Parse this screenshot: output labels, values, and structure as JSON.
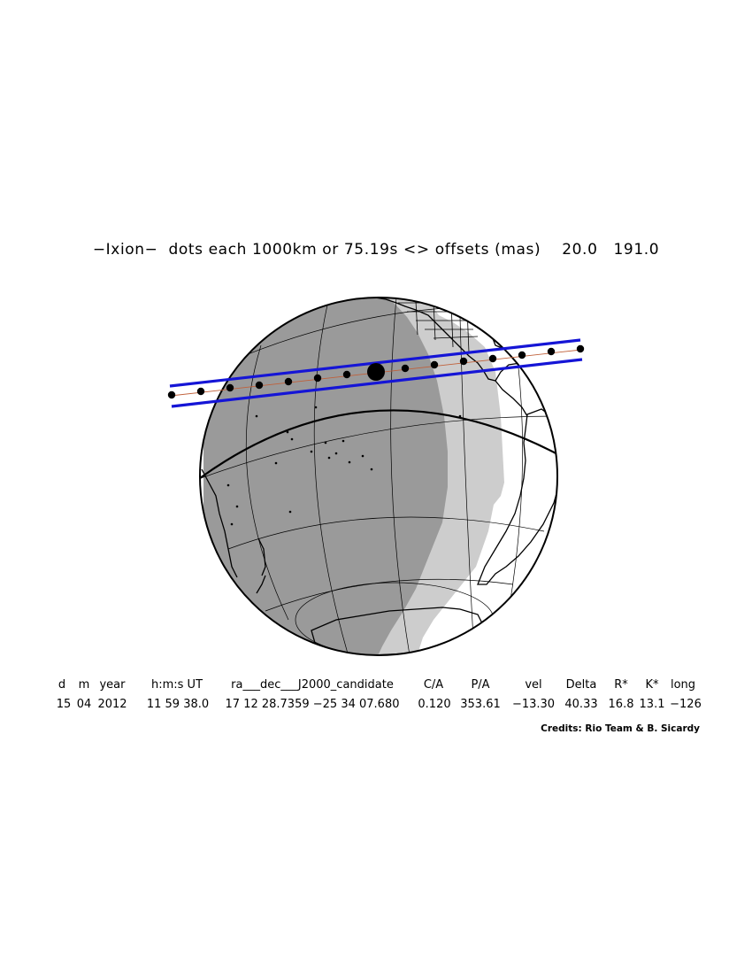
{
  "title": "−Ixion−  dots each 1000km or 75.19s <> offsets (mas)    20.0   191.0",
  "colors": {
    "background": "#ffffff",
    "night_side": "#9a9a9a",
    "twilight": "#cdcdcd",
    "day_side": "#ffffff",
    "shadow_limits": "#1515d6",
    "centerline": "#c0603a",
    "graticule": "#000000",
    "dots": "#000000"
  },
  "diagram": {
    "object": "Ixion",
    "dot_count": 14,
    "closest_approach_dot_index": 7
  },
  "table": {
    "headers": [
      "d",
      "m",
      "year",
      "h:m:s UT",
      "ra___dec___J2000_candidate",
      "C/A",
      "P/A",
      "vel",
      "Delta",
      "R*",
      "K*",
      "long"
    ],
    "values": [
      "15",
      "04",
      "2012",
      "11 59 38.0",
      "17 12 28.7359 −25 34 07.680",
      "0.120",
      "353.61",
      "−13.30",
      "40.33",
      "16.8",
      "13.1",
      "−126"
    ]
  },
  "credits": "Credits: Rio Team & B. Sicardy"
}
